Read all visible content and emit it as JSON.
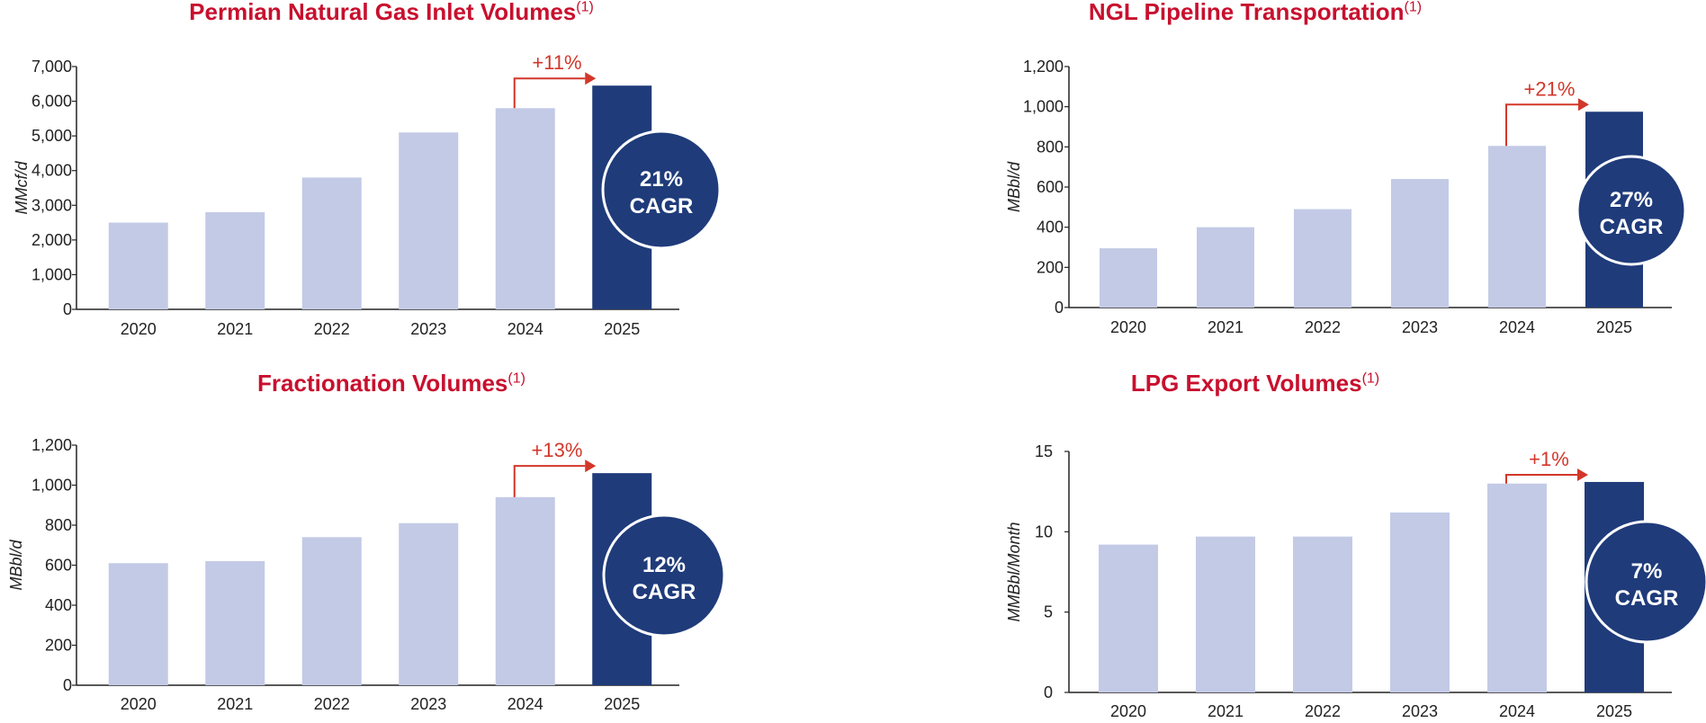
{
  "colors": {
    "title": "#c8102e",
    "bar_light": "#c3cae6",
    "bar_dark": "#1f3b7a",
    "accent": "#d2372a",
    "axis": "#222222"
  },
  "chart_data": [
    {
      "type": "bar",
      "title": "Permian Natural Gas Inlet Volumes",
      "title_sup": "(1)",
      "ylabel": "MMcf/d",
      "categories": [
        "2020",
        "2021",
        "2022",
        "2023",
        "2024",
        "2025"
      ],
      "values": [
        2500,
        2800,
        3800,
        5100,
        5800,
        6450
      ],
      "ylim": [
        0,
        7000
      ],
      "yticks": [
        0,
        1000,
        2000,
        3000,
        4000,
        5000,
        6000,
        7000
      ],
      "ytick_labels": [
        "0",
        "1,000",
        "2,000",
        "3,000",
        "4,000",
        "5,000",
        "6,000",
        "7,000"
      ],
      "growth_label": "+11%",
      "cagr_value": "21%",
      "cagr_text": "CAGR",
      "grid": false
    },
    {
      "type": "bar",
      "title": "NGL Pipeline Transportation",
      "title_sup": "(1)",
      "ylabel": "MBbl/d",
      "categories": [
        "2020",
        "2021",
        "2022",
        "2023",
        "2024",
        "2025"
      ],
      "values": [
        295,
        400,
        490,
        640,
        805,
        975
      ],
      "ylim": [
        0,
        1200
      ],
      "yticks": [
        0,
        200,
        400,
        600,
        800,
        1000,
        1200
      ],
      "ytick_labels": [
        "0",
        "200",
        "400",
        "600",
        "800",
        "1,000",
        "1,200"
      ],
      "growth_label": "+21%",
      "cagr_value": "27%",
      "cagr_text": "CAGR",
      "grid": false
    },
    {
      "type": "bar",
      "title": "Fractionation Volumes",
      "title_sup": "(1)",
      "ylabel": "MBbl/d",
      "categories": [
        "2020",
        "2021",
        "2022",
        "2023",
        "2024",
        "2025"
      ],
      "values": [
        610,
        620,
        740,
        810,
        940,
        1060
      ],
      "ylim": [
        0,
        1200
      ],
      "yticks": [
        0,
        200,
        400,
        600,
        800,
        1000,
        1200
      ],
      "ytick_labels": [
        "0",
        "200",
        "400",
        "600",
        "800",
        "1,000",
        "1,200"
      ],
      "growth_label": "+13%",
      "cagr_value": "12%",
      "cagr_text": "CAGR",
      "grid": false
    },
    {
      "type": "bar",
      "title": "LPG Export Volumes",
      "title_sup": "(1)",
      "ylabel": "MMBbl/Month",
      "categories": [
        "2020",
        "2021",
        "2022",
        "2023",
        "2024",
        "2025"
      ],
      "values": [
        9.2,
        9.7,
        9.7,
        11.2,
        13.0,
        13.1
      ],
      "ylim": [
        0,
        15
      ],
      "yticks": [
        0,
        5,
        10,
        15
      ],
      "ytick_labels": [
        "0",
        "5",
        "10",
        "15"
      ],
      "growth_label": "+1%",
      "cagr_value": "7%",
      "cagr_text": "CAGR",
      "grid": false
    }
  ]
}
